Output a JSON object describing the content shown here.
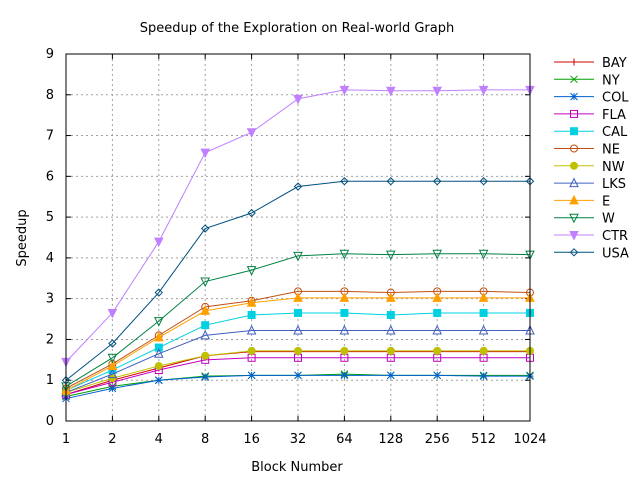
{
  "chart_data": {
    "type": "line",
    "title": "Speedup of the Exploration on Real-world Graph",
    "xlabel": "Block Number",
    "ylabel": "Speedup",
    "categories": [
      "1",
      "2",
      "4",
      "8",
      "16",
      "32",
      "64",
      "128",
      "256",
      "512",
      "1024"
    ],
    "ylim": [
      0,
      9
    ],
    "yticks": [
      "0",
      "1",
      "2",
      "3",
      "4",
      "5",
      "6",
      "7",
      "8",
      "9"
    ],
    "grid": true,
    "legend_position": "right",
    "series": [
      {
        "name": "BAY",
        "color": "#d00000",
        "marker": "plus",
        "values": [
          0.65,
          1.0,
          1.3,
          1.6,
          1.7,
          1.7,
          1.7,
          1.7,
          1.7,
          1.7,
          1.7
        ]
      },
      {
        "name": "NY",
        "color": "#00a000",
        "marker": "x",
        "values": [
          0.6,
          0.85,
          1.0,
          1.1,
          1.12,
          1.12,
          1.15,
          1.12,
          1.12,
          1.12,
          1.12
        ]
      },
      {
        "name": "COL",
        "color": "#0060d0",
        "marker": "star",
        "values": [
          0.55,
          0.8,
          1.0,
          1.08,
          1.12,
          1.12,
          1.12,
          1.12,
          1.12,
          1.1,
          1.1
        ]
      },
      {
        "name": "FLA",
        "color": "#c000c0",
        "marker": "square",
        "values": [
          0.65,
          0.95,
          1.25,
          1.5,
          1.55,
          1.55,
          1.55,
          1.55,
          1.55,
          1.55,
          1.55
        ]
      },
      {
        "name": "CAL",
        "color": "#00d0e0",
        "marker": "square-filled",
        "values": [
          0.75,
          1.25,
          1.8,
          2.35,
          2.6,
          2.65,
          2.65,
          2.6,
          2.65,
          2.65,
          2.65
        ]
      },
      {
        "name": "NE",
        "color": "#c05010",
        "marker": "circle",
        "values": [
          0.8,
          1.4,
          2.1,
          2.8,
          2.95,
          3.18,
          3.18,
          3.15,
          3.18,
          3.18,
          3.15
        ]
      },
      {
        "name": "NW",
        "color": "#c0c000",
        "marker": "circle-filled",
        "values": [
          0.7,
          1.05,
          1.35,
          1.6,
          1.72,
          1.72,
          1.72,
          1.72,
          1.72,
          1.72,
          1.72
        ]
      },
      {
        "name": "LKS",
        "color": "#4060c0",
        "marker": "triangle",
        "values": [
          0.7,
          1.15,
          1.65,
          2.1,
          2.22,
          2.22,
          2.22,
          2.22,
          2.22,
          2.22,
          2.22
        ]
      },
      {
        "name": "E",
        "color": "#ffa000",
        "marker": "triangle-filled",
        "values": [
          0.75,
          1.35,
          2.05,
          2.7,
          2.9,
          3.02,
          3.02,
          3.02,
          3.02,
          3.02,
          3.02
        ]
      },
      {
        "name": "W",
        "color": "#008040",
        "marker": "triangle-down",
        "values": [
          0.85,
          1.55,
          2.45,
          3.42,
          3.7,
          4.05,
          4.1,
          4.08,
          4.1,
          4.1,
          4.08
        ]
      },
      {
        "name": "CTR",
        "color": "#c080ff",
        "marker": "triangle-down-filled",
        "values": [
          1.45,
          2.65,
          4.4,
          6.58,
          7.08,
          7.9,
          8.12,
          8.1,
          8.1,
          8.12,
          8.12
        ]
      },
      {
        "name": "USA",
        "color": "#005080",
        "marker": "diamond",
        "values": [
          1.0,
          1.9,
          3.15,
          4.72,
          5.1,
          5.75,
          5.88,
          5.88,
          5.88,
          5.88,
          5.88
        ]
      }
    ]
  }
}
